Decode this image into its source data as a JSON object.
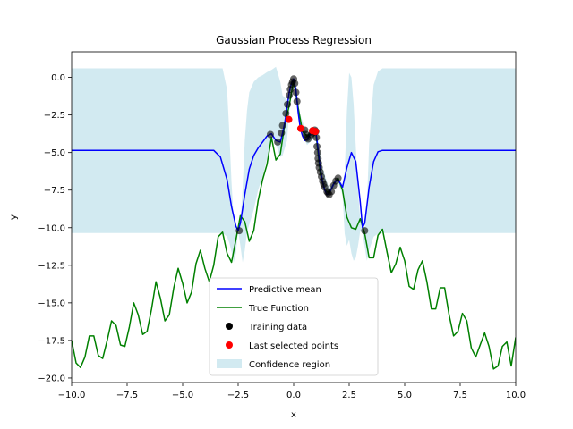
{
  "chart_data": {
    "type": "line",
    "title": "Gaussian Process Regression",
    "xlabel": "x",
    "ylabel": "y",
    "xlim": [
      -10,
      10
    ],
    "ylim": [
      -20.3,
      1.7
    ],
    "xticks": [
      -10,
      -7.5,
      -5,
      -2.5,
      0,
      2.5,
      5,
      7.5,
      10
    ],
    "xtick_labels": [
      "−10.0",
      "−7.5",
      "−5.0",
      "−2.5",
      "0.0",
      "2.5",
      "5.0",
      "7.5",
      "10.0"
    ],
    "yticks": [
      0,
      -2.5,
      -5,
      -7.5,
      -10,
      -12.5,
      -15,
      -17.5,
      -20
    ],
    "ytick_labels": [
      "0.0",
      "−2.5",
      "−5.0",
      "−7.5",
      "−10.0",
      "−12.5",
      "−15.0",
      "−17.5",
      "−20.0"
    ],
    "grid": false,
    "legend_position": "lower center",
    "colors": {
      "mean": "#0000ff",
      "true": "#008000",
      "train": "#000000",
      "last": "#ff0000",
      "confidence": "#add8e6"
    },
    "legend": [
      {
        "label": "Predictive mean",
        "kind": "line",
        "color": "#0000ff"
      },
      {
        "label": "True Function",
        "kind": "line",
        "color": "#008000"
      },
      {
        "label": "Training data",
        "kind": "point",
        "color": "#000000"
      },
      {
        "label": "Last selected points",
        "kind": "point",
        "color": "#ff0000"
      },
      {
        "label": "Confidence region",
        "kind": "patch",
        "color": "#add8e6"
      }
    ],
    "series": [
      {
        "name": "Predictive mean",
        "x": [
          -10,
          -3.6,
          -3.3,
          -3.0,
          -2.8,
          -2.6,
          -2.5,
          -2.4,
          -2.2,
          -2.0,
          -1.8,
          -1.6,
          -1.4,
          -1.2,
          -1.0,
          -0.8,
          -0.6,
          -0.5,
          -0.4,
          -0.3,
          -0.2,
          -0.1,
          0.0,
          0.1,
          0.2,
          0.3,
          0.4,
          0.5,
          0.6,
          0.7,
          0.8,
          0.9,
          1.0,
          1.1,
          1.2,
          1.3,
          1.4,
          1.5,
          1.6,
          1.7,
          1.8,
          1.9,
          2.0,
          2.2,
          2.4,
          2.6,
          2.8,
          3.0,
          3.1,
          3.2,
          3.4,
          3.6,
          3.8,
          4.0,
          10
        ],
        "y": [
          -4.85,
          -4.85,
          -5.3,
          -6.8,
          -8.6,
          -9.9,
          -10.2,
          -9.7,
          -7.8,
          -6.1,
          -5.2,
          -4.7,
          -4.3,
          -3.9,
          -3.75,
          -4.2,
          -4.3,
          -3.7,
          -3.0,
          -2.0,
          -1.0,
          -0.4,
          -0.1,
          -0.8,
          -2.3,
          -3.4,
          -3.9,
          -4.2,
          -4.15,
          -3.9,
          -3.7,
          -3.55,
          -3.6,
          -4.8,
          -6.1,
          -6.9,
          -7.5,
          -7.8,
          -7.7,
          -7.4,
          -7.1,
          -6.9,
          -6.8,
          -7.3,
          -6.0,
          -5.0,
          -5.6,
          -8.3,
          -10.0,
          -9.7,
          -7.3,
          -5.6,
          -4.95,
          -4.85,
          -4.85
        ]
      },
      {
        "name": "True Function",
        "x": [
          -10.0,
          -9.8,
          -9.6,
          -9.4,
          -9.2,
          -9.0,
          -8.8,
          -8.6,
          -8.4,
          -8.2,
          -8.0,
          -7.8,
          -7.6,
          -7.4,
          -7.2,
          -7.0,
          -6.8,
          -6.6,
          -6.4,
          -6.2,
          -6.0,
          -5.8,
          -5.6,
          -5.4,
          -5.2,
          -5.0,
          -4.8,
          -4.6,
          -4.4,
          -4.2,
          -4.0,
          -3.8,
          -3.6,
          -3.4,
          -3.2,
          -3.0,
          -2.8,
          -2.6,
          -2.4,
          -2.2,
          -2.0,
          -1.8,
          -1.6,
          -1.4,
          -1.2,
          -1.0,
          -0.8,
          -0.6,
          -0.4,
          -0.2,
          0.0,
          0.2,
          0.4,
          0.6,
          0.8,
          1.0,
          1.2,
          1.4,
          1.6,
          1.8,
          2.0,
          2.2,
          2.4,
          2.6,
          2.8,
          3.0,
          3.2,
          3.4,
          3.6,
          3.8,
          4.0,
          4.2,
          4.4,
          4.6,
          4.8,
          5.0,
          5.2,
          5.4,
          5.6,
          5.8,
          6.0,
          6.2,
          6.4,
          6.6,
          6.8,
          7.0,
          7.2,
          7.4,
          7.6,
          7.8,
          8.0,
          8.2,
          8.4,
          8.6,
          8.8,
          9.0,
          9.2,
          9.4,
          9.6,
          9.8,
          10.0
        ],
        "y": [
          -17.5,
          -19.0,
          -19.3,
          -18.6,
          -17.2,
          -17.2,
          -18.5,
          -18.7,
          -17.5,
          -16.2,
          -16.5,
          -17.8,
          -17.9,
          -16.6,
          -15.0,
          -15.8,
          -17.1,
          -16.9,
          -15.4,
          -13.6,
          -14.7,
          -16.2,
          -15.8,
          -14.0,
          -12.7,
          -13.7,
          -15.0,
          -14.3,
          -12.4,
          -11.5,
          -12.7,
          -13.6,
          -12.5,
          -10.6,
          -10.3,
          -11.7,
          -12.3,
          -10.8,
          -9.2,
          -9.6,
          -10.9,
          -10.2,
          -8.2,
          -6.8,
          -5.8,
          -4.0,
          -5.5,
          -5.1,
          -3.1,
          -1.9,
          -0.2,
          -2.0,
          -3.6,
          -3.9,
          -3.7,
          -3.7,
          -6.4,
          -7.5,
          -7.7,
          -7.1,
          -6.7,
          -7.5,
          -9.3,
          -10.0,
          -10.1,
          -9.4,
          -10.4,
          -12.0,
          -12.0,
          -10.5,
          -10.1,
          -11.6,
          -13.0,
          -12.4,
          -11.3,
          -12.2,
          -13.9,
          -14.1,
          -12.8,
          -12.2,
          -13.6,
          -15.4,
          -15.4,
          -14.0,
          -14.0,
          -15.8,
          -17.2,
          -16.9,
          -15.7,
          -16.2,
          -18.0,
          -18.6,
          -17.8,
          -17.0,
          -17.9,
          -19.4,
          -19.2,
          -17.9,
          -17.6,
          -19.2,
          -17.3
        ]
      },
      {
        "name": "Confidence region",
        "x": [
          -10,
          -3.2,
          -3.0,
          -2.9,
          -2.8,
          -2.7,
          -2.6,
          -2.5,
          -2.4,
          -2.3,
          -2.2,
          -2.1,
          -2.0,
          -1.8,
          -1.6,
          -1.4,
          -1.2,
          -1.0,
          -0.8,
          -0.6,
          -0.5,
          -0.3,
          -0.1,
          0.0,
          0.3,
          0.6,
          1.0,
          1.3,
          1.6,
          1.9,
          2.0,
          2.2,
          2.3,
          2.4,
          2.5,
          2.6,
          2.7,
          2.8,
          2.9,
          3.0,
          3.1,
          3.2,
          3.3,
          3.4,
          3.6,
          3.8,
          4.0,
          10
        ],
        "upper": [
          0.6,
          0.6,
          -0.8,
          -3.6,
          -7.0,
          -9.4,
          -9.9,
          -10.2,
          -9.7,
          -7.4,
          -4.2,
          -2.2,
          -1.0,
          -0.3,
          0.0,
          0.15,
          0.35,
          0.5,
          0.7,
          -0.3,
          -1.2,
          -1.5,
          -0.3,
          0.0,
          -2.5,
          -3.8,
          -3.3,
          -6.0,
          -7.4,
          -6.7,
          -6.7,
          -7.1,
          -6.3,
          -2.2,
          0.3,
          0.0,
          -1.8,
          -4.6,
          -7.6,
          -9.5,
          -9.9,
          -10.0,
          -8.5,
          -4.4,
          -0.5,
          0.4,
          0.6,
          0.6
        ],
        "lower": [
          -10.35,
          -10.35,
          -10.6,
          -11.0,
          -11.6,
          -12.3,
          -11.7,
          -10.2,
          -11.2,
          -12.3,
          -11.5,
          -10.3,
          -9.8,
          -8.8,
          -7.5,
          -6.6,
          -5.4,
          -4.0,
          -4.5,
          -5.3,
          -5.2,
          -4.2,
          -0.5,
          -0.3,
          -3.5,
          -4.5,
          -3.9,
          -7.0,
          -7.9,
          -7.1,
          -7.0,
          -7.8,
          -10.4,
          -11.2,
          -10.8,
          -11.7,
          -12.2,
          -12.0,
          -11.2,
          -10.2,
          -10.4,
          -11.3,
          -12.2,
          -11.5,
          -10.6,
          -10.4,
          -10.35,
          -10.35
        ]
      },
      {
        "name": "Training data",
        "x": [
          -2.45,
          -1.05,
          -0.72,
          -0.55,
          -0.5,
          -0.35,
          -0.28,
          -0.2,
          -0.15,
          -0.1,
          -0.05,
          0.0,
          0.05,
          0.1,
          0.15,
          0.5,
          0.55,
          0.6,
          0.65,
          0.8,
          0.85,
          0.9,
          0.95,
          1.0,
          1.02,
          1.05,
          1.08,
          1.1,
          1.12,
          1.15,
          1.2,
          1.25,
          1.3,
          1.35,
          1.4,
          1.5,
          1.55,
          1.6,
          1.7,
          1.8,
          1.9,
          2.0,
          3.2
        ],
        "y": [
          -10.2,
          -3.8,
          -4.3,
          -3.7,
          -3.2,
          -2.4,
          -1.8,
          -1.2,
          -0.8,
          -0.5,
          -0.3,
          -0.1,
          -0.4,
          -1.0,
          -1.6,
          -3.5,
          -3.8,
          -4.0,
          -4.1,
          -3.8,
          -3.7,
          -3.6,
          -3.5,
          -3.6,
          -4.0,
          -4.6,
          -5.0,
          -5.4,
          -5.7,
          -6.0,
          -6.3,
          -6.6,
          -6.9,
          -7.1,
          -7.3,
          -7.6,
          -7.7,
          -7.8,
          -7.6,
          -7.2,
          -6.9,
          -6.7,
          -10.2
        ]
      },
      {
        "name": "Last selected points",
        "x": [
          -0.22,
          0.32,
          0.85,
          0.98
        ],
        "y": [
          -2.8,
          -3.4,
          -3.55,
          -3.6
        ]
      }
    ]
  }
}
